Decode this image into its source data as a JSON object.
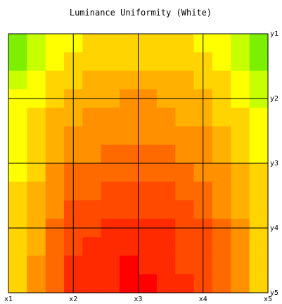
{
  "chart_data": {
    "type": "heatmap",
    "title": "Luminance Uniformity (White)",
    "x_ticks": [
      "x1",
      "x2",
      "x3",
      "x4",
      "x5"
    ],
    "y_ticks": [
      "y1",
      "y2",
      "y3",
      "y4",
      "y5"
    ],
    "grid": true,
    "color_scale": [
      "#00f000",
      "#7cf000",
      "#c8ff00",
      "#ffff00",
      "#ffd400",
      "#ffb000",
      "#ff9000",
      "#ff6a00",
      "#ff4a00",
      "#ff2a00",
      "#ff0000"
    ],
    "values": [
      [
        0.0,
        3.2,
        3.4,
        3.2,
        0.3
      ],
      [
        2.2,
        5.0,
        5.8,
        4.8,
        2.0
      ],
      [
        2.8,
        6.4,
        7.1,
        6.2,
        3.2
      ],
      [
        3.2,
        8.0,
        9.2,
        7.8,
        3.8
      ],
      [
        3.3,
        9.0,
        10.0,
        8.2,
        3.9
      ]
    ]
  }
}
